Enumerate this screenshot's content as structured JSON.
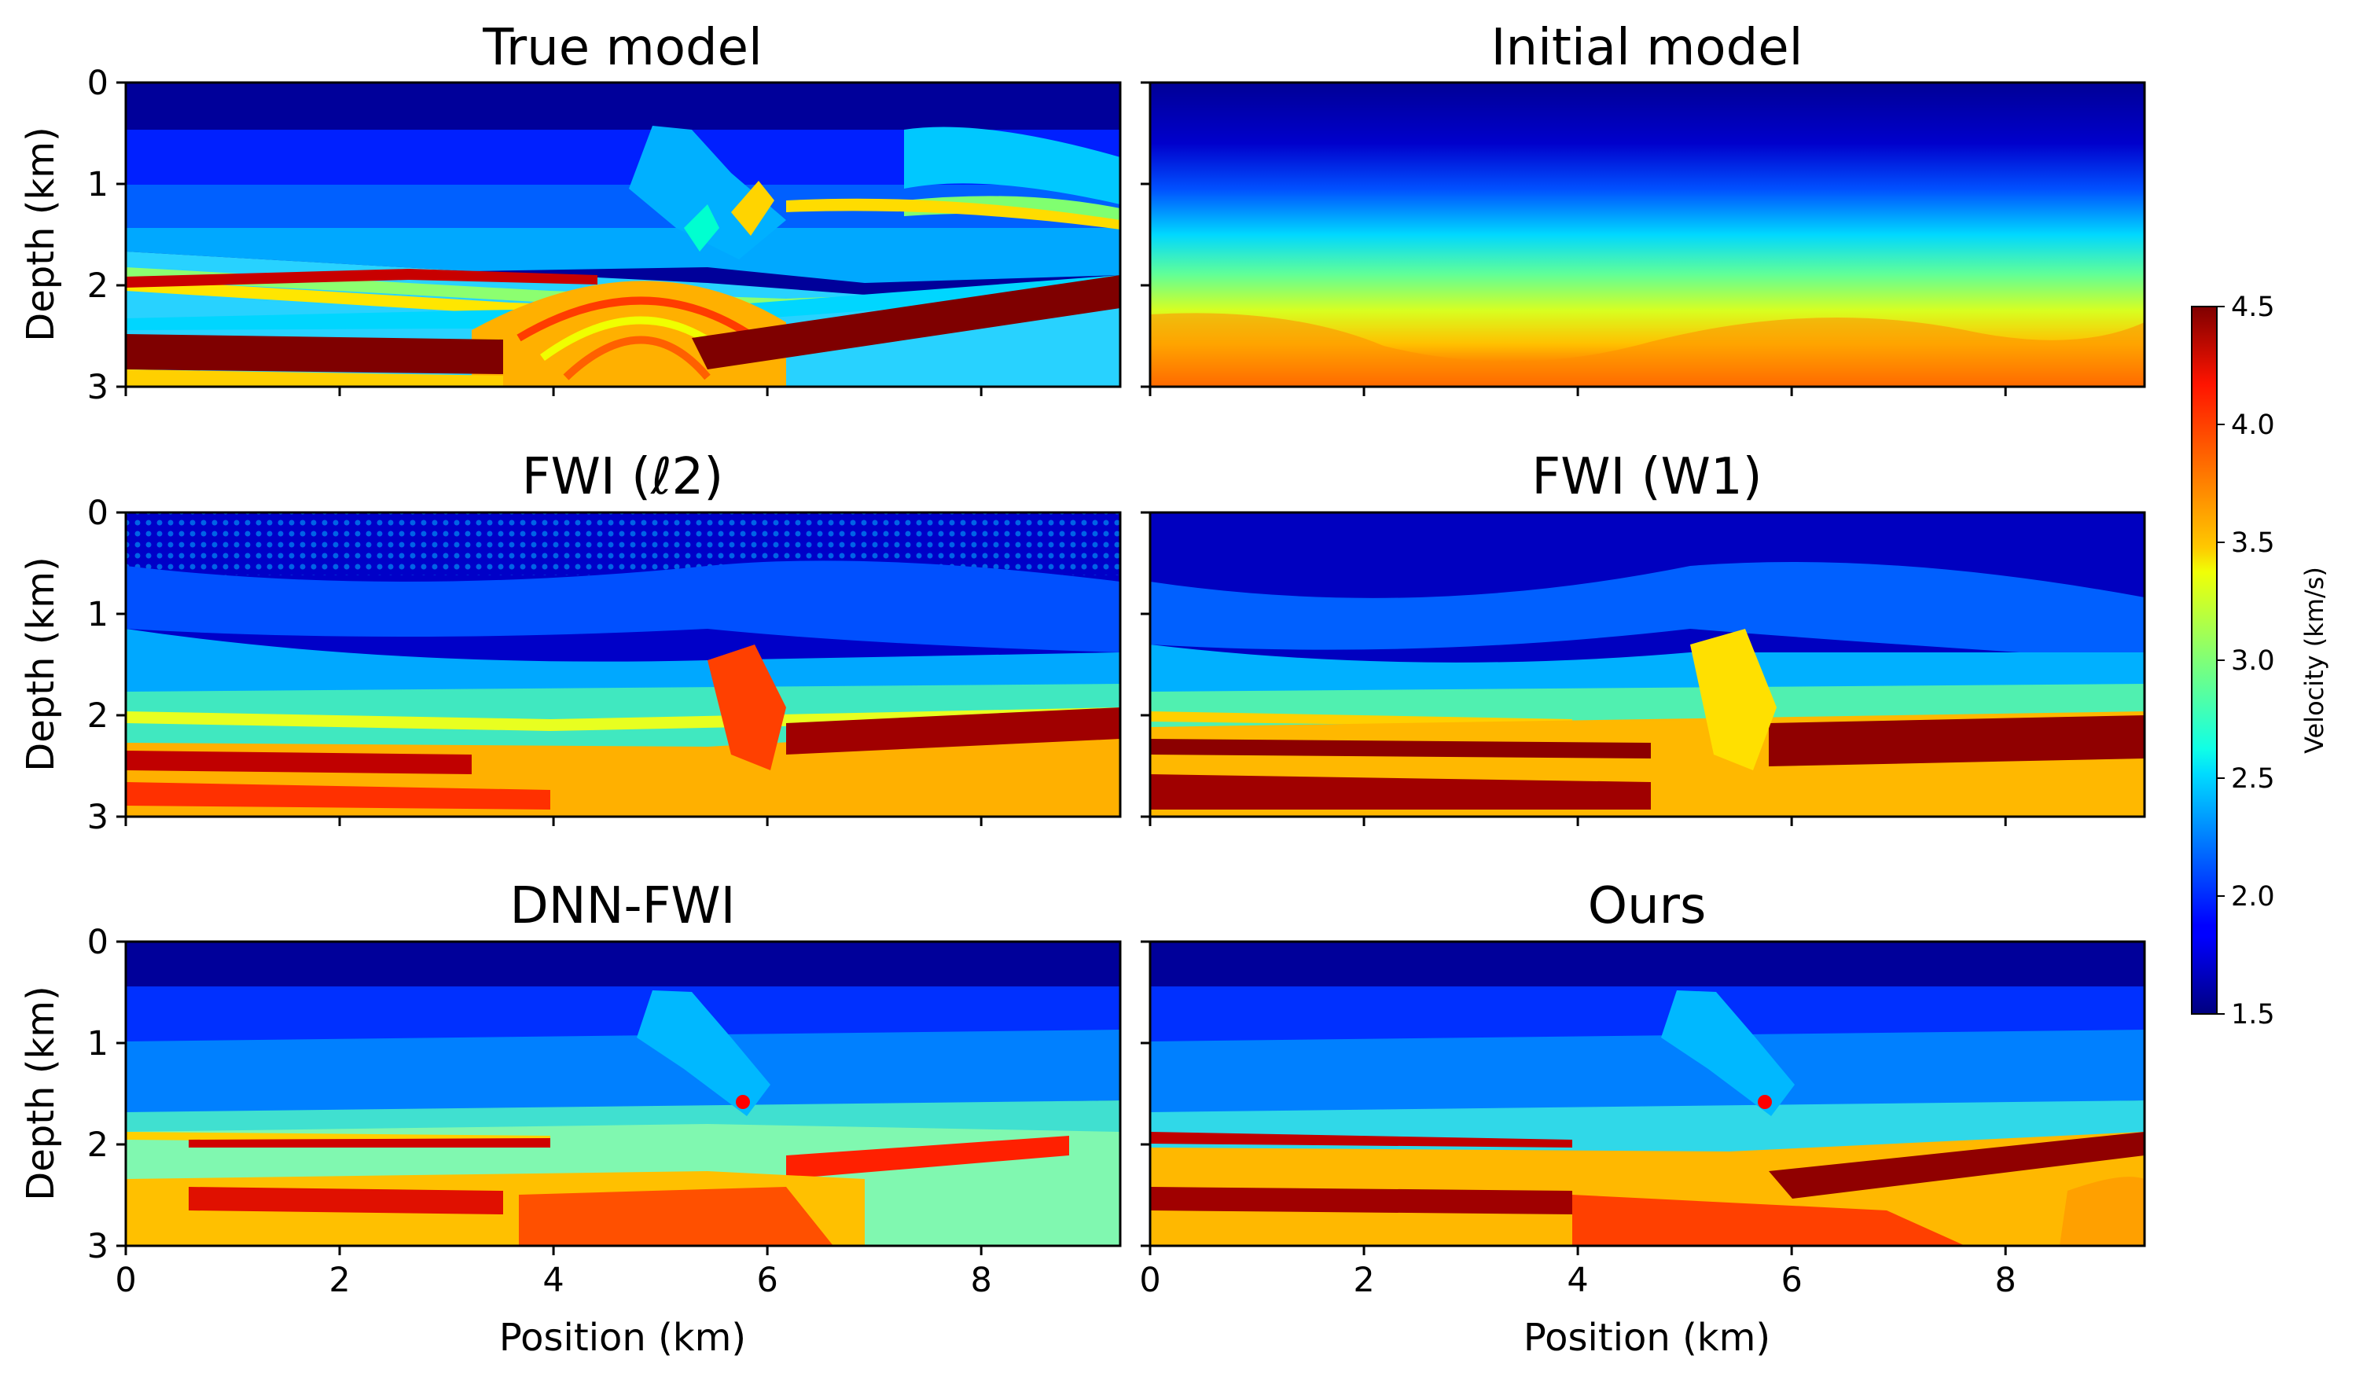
{
  "chart_data": {
    "type": "heatmap",
    "colormap": "jet",
    "colorbar": {
      "label": "Velocity (km/s)",
      "range": [
        1.5,
        4.5
      ],
      "ticks": [
        "1.5",
        "2.0",
        "2.5",
        "3.0",
        "3.5",
        "4.0",
        "4.5"
      ]
    },
    "x": {
      "label": "Position (km)",
      "range": [
        0,
        9.3
      ],
      "ticks": [
        "0",
        "2",
        "4",
        "6",
        "8"
      ]
    },
    "y": {
      "label": "Depth (km)",
      "range": [
        0,
        3
      ],
      "ticks": [
        "0",
        "1",
        "2",
        "3"
      ]
    },
    "panels": [
      {
        "title": "True model"
      },
      {
        "title": "Initial model"
      },
      {
        "title": "FWI (ℓ2)"
      },
      {
        "title": "FWI (W1)"
      },
      {
        "title": "DNN-FWI"
      },
      {
        "title": "Ours"
      }
    ]
  }
}
